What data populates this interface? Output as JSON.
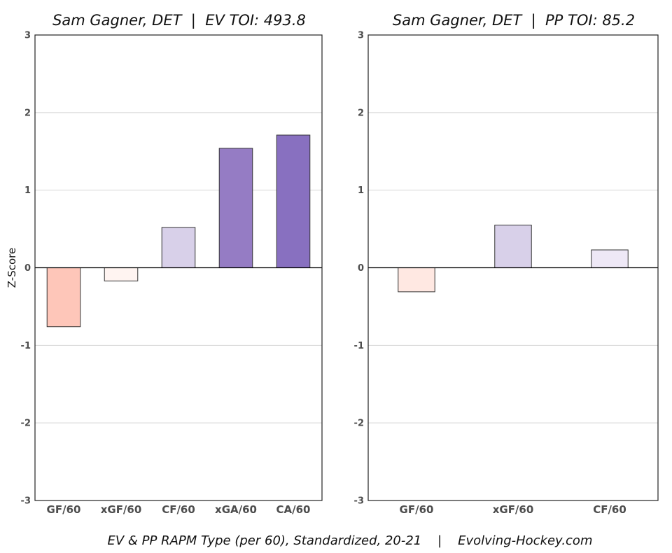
{
  "chart_data": [
    {
      "type": "bar",
      "title": "Sam Gagner, DET  |  EV TOI: 493.8",
      "ylabel": "Z-Score",
      "categories": [
        "GF/60",
        "xGF/60",
        "CF/60",
        "xGA/60",
        "CA/60"
      ],
      "values": [
        -0.76,
        -0.17,
        0.52,
        1.54,
        1.71
      ],
      "colors": [
        "#fec6b9",
        "#fff4f1",
        "#d8d0e9",
        "#957cc4",
        "#8870c0"
      ],
      "ylim": [
        -3,
        3
      ],
      "yticks": [
        -3,
        -2,
        -1,
        0,
        1,
        2,
        3
      ],
      "ytick_labels": [
        "-3",
        "-2",
        "-1",
        "0",
        "1",
        "2",
        "3"
      ],
      "grid": true
    },
    {
      "type": "bar",
      "title": "Sam Gagner, DET  |  PP TOI: 85.2",
      "categories": [
        "GF/60",
        "xGF/60",
        "CF/60"
      ],
      "values": [
        -0.31,
        0.55,
        0.23
      ],
      "colors": [
        "#ffe8e2",
        "#d8d0e9",
        "#eee8f6"
      ],
      "ylim": [
        -3,
        3
      ],
      "yticks": [
        -3,
        -2,
        -1,
        0,
        1,
        2,
        3
      ],
      "ytick_labels": [
        "-3",
        "-2",
        "-1",
        "0",
        "1",
        "2",
        "3"
      ],
      "grid": true
    }
  ],
  "caption": "EV & PP RAPM Type (per 60), Standardized, 20-21    |    Evolving-Hockey.com"
}
